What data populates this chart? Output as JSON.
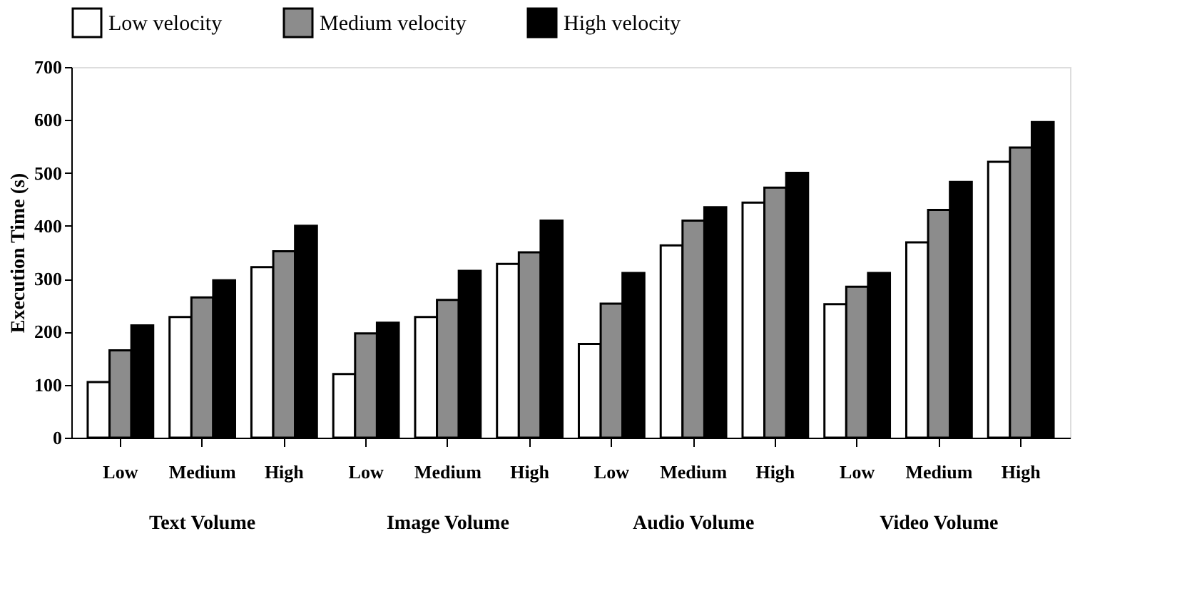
{
  "chart_data": {
    "type": "bar",
    "ylabel": "Execution Time (s)",
    "categories": [
      "Low",
      "Medium",
      "High",
      "Low",
      "Medium",
      "High",
      "Low",
      "Medium",
      "High",
      "Low",
      "Medium",
      "High"
    ],
    "series": [
      {
        "name": "Low velocity",
        "color": "#ffffff",
        "values": [
          105,
          228,
          322,
          120,
          228,
          328,
          177,
          363,
          444,
          252,
          369,
          521
        ]
      },
      {
        "name": "Medium velocity",
        "color": "#8c8c8c",
        "values": [
          165,
          265,
          352,
          197,
          260,
          350,
          253,
          410,
          472,
          285,
          430,
          548
        ]
      },
      {
        "name": "High velocity",
        "color": "#000000",
        "values": [
          212,
          297,
          400,
          217,
          315,
          410,
          311,
          435,
          500,
          311,
          483,
          596
        ]
      }
    ],
    "annotations": [
      "Text Volume",
      "Image Volume",
      "Audio Volume",
      "Video Volume"
    ],
    "ylim": [
      0,
      700
    ],
    "yticks": [
      0,
      100,
      200,
      300,
      400,
      500,
      600,
      700
    ],
    "grid": false,
    "legend": "top"
  }
}
